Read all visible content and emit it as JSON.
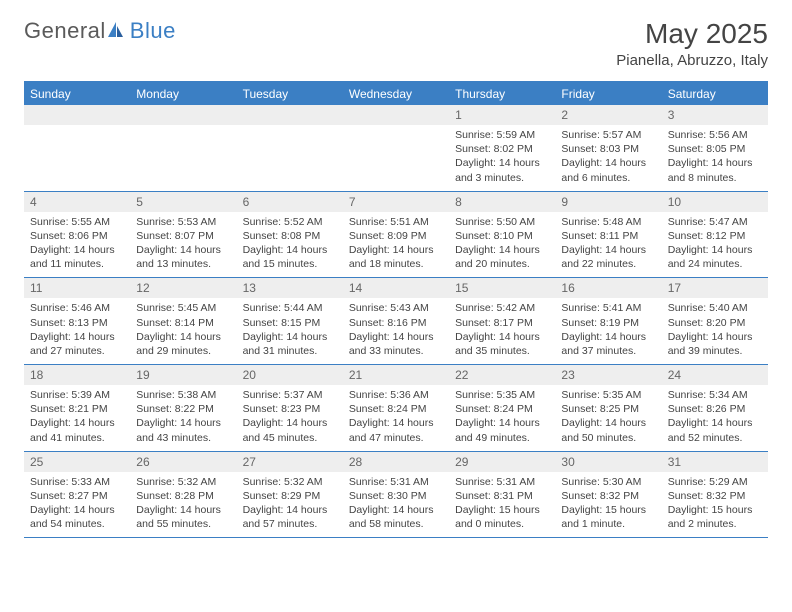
{
  "logo": {
    "general": "General",
    "blue": "Blue"
  },
  "title": "May 2025",
  "location": "Pianella, Abruzzo, Italy",
  "colors": {
    "primary": "#3b7fc4",
    "header_bg": "#3b7fc4",
    "header_text": "#ffffff",
    "daynum_bg": "#eeeeee",
    "body_text": "#444444",
    "logo_gray": "#5a5a5a"
  },
  "day_names": [
    "Sunday",
    "Monday",
    "Tuesday",
    "Wednesday",
    "Thursday",
    "Friday",
    "Saturday"
  ],
  "weeks": [
    [
      {
        "n": "",
        "lines": []
      },
      {
        "n": "",
        "lines": []
      },
      {
        "n": "",
        "lines": []
      },
      {
        "n": "",
        "lines": []
      },
      {
        "n": "1",
        "lines": [
          "Sunrise: 5:59 AM",
          "Sunset: 8:02 PM",
          "Daylight: 14 hours and 3 minutes."
        ]
      },
      {
        "n": "2",
        "lines": [
          "Sunrise: 5:57 AM",
          "Sunset: 8:03 PM",
          "Daylight: 14 hours and 6 minutes."
        ]
      },
      {
        "n": "3",
        "lines": [
          "Sunrise: 5:56 AM",
          "Sunset: 8:05 PM",
          "Daylight: 14 hours and 8 minutes."
        ]
      }
    ],
    [
      {
        "n": "4",
        "lines": [
          "Sunrise: 5:55 AM",
          "Sunset: 8:06 PM",
          "Daylight: 14 hours and 11 minutes."
        ]
      },
      {
        "n": "5",
        "lines": [
          "Sunrise: 5:53 AM",
          "Sunset: 8:07 PM",
          "Daylight: 14 hours and 13 minutes."
        ]
      },
      {
        "n": "6",
        "lines": [
          "Sunrise: 5:52 AM",
          "Sunset: 8:08 PM",
          "Daylight: 14 hours and 15 minutes."
        ]
      },
      {
        "n": "7",
        "lines": [
          "Sunrise: 5:51 AM",
          "Sunset: 8:09 PM",
          "Daylight: 14 hours and 18 minutes."
        ]
      },
      {
        "n": "8",
        "lines": [
          "Sunrise: 5:50 AM",
          "Sunset: 8:10 PM",
          "Daylight: 14 hours and 20 minutes."
        ]
      },
      {
        "n": "9",
        "lines": [
          "Sunrise: 5:48 AM",
          "Sunset: 8:11 PM",
          "Daylight: 14 hours and 22 minutes."
        ]
      },
      {
        "n": "10",
        "lines": [
          "Sunrise: 5:47 AM",
          "Sunset: 8:12 PM",
          "Daylight: 14 hours and 24 minutes."
        ]
      }
    ],
    [
      {
        "n": "11",
        "lines": [
          "Sunrise: 5:46 AM",
          "Sunset: 8:13 PM",
          "Daylight: 14 hours and 27 minutes."
        ]
      },
      {
        "n": "12",
        "lines": [
          "Sunrise: 5:45 AM",
          "Sunset: 8:14 PM",
          "Daylight: 14 hours and 29 minutes."
        ]
      },
      {
        "n": "13",
        "lines": [
          "Sunrise: 5:44 AM",
          "Sunset: 8:15 PM",
          "Daylight: 14 hours and 31 minutes."
        ]
      },
      {
        "n": "14",
        "lines": [
          "Sunrise: 5:43 AM",
          "Sunset: 8:16 PM",
          "Daylight: 14 hours and 33 minutes."
        ]
      },
      {
        "n": "15",
        "lines": [
          "Sunrise: 5:42 AM",
          "Sunset: 8:17 PM",
          "Daylight: 14 hours and 35 minutes."
        ]
      },
      {
        "n": "16",
        "lines": [
          "Sunrise: 5:41 AM",
          "Sunset: 8:19 PM",
          "Daylight: 14 hours and 37 minutes."
        ]
      },
      {
        "n": "17",
        "lines": [
          "Sunrise: 5:40 AM",
          "Sunset: 8:20 PM",
          "Daylight: 14 hours and 39 minutes."
        ]
      }
    ],
    [
      {
        "n": "18",
        "lines": [
          "Sunrise: 5:39 AM",
          "Sunset: 8:21 PM",
          "Daylight: 14 hours and 41 minutes."
        ]
      },
      {
        "n": "19",
        "lines": [
          "Sunrise: 5:38 AM",
          "Sunset: 8:22 PM",
          "Daylight: 14 hours and 43 minutes."
        ]
      },
      {
        "n": "20",
        "lines": [
          "Sunrise: 5:37 AM",
          "Sunset: 8:23 PM",
          "Daylight: 14 hours and 45 minutes."
        ]
      },
      {
        "n": "21",
        "lines": [
          "Sunrise: 5:36 AM",
          "Sunset: 8:24 PM",
          "Daylight: 14 hours and 47 minutes."
        ]
      },
      {
        "n": "22",
        "lines": [
          "Sunrise: 5:35 AM",
          "Sunset: 8:24 PM",
          "Daylight: 14 hours and 49 minutes."
        ]
      },
      {
        "n": "23",
        "lines": [
          "Sunrise: 5:35 AM",
          "Sunset: 8:25 PM",
          "Daylight: 14 hours and 50 minutes."
        ]
      },
      {
        "n": "24",
        "lines": [
          "Sunrise: 5:34 AM",
          "Sunset: 8:26 PM",
          "Daylight: 14 hours and 52 minutes."
        ]
      }
    ],
    [
      {
        "n": "25",
        "lines": [
          "Sunrise: 5:33 AM",
          "Sunset: 8:27 PM",
          "Daylight: 14 hours and 54 minutes."
        ]
      },
      {
        "n": "26",
        "lines": [
          "Sunrise: 5:32 AM",
          "Sunset: 8:28 PM",
          "Daylight: 14 hours and 55 minutes."
        ]
      },
      {
        "n": "27",
        "lines": [
          "Sunrise: 5:32 AM",
          "Sunset: 8:29 PM",
          "Daylight: 14 hours and 57 minutes."
        ]
      },
      {
        "n": "28",
        "lines": [
          "Sunrise: 5:31 AM",
          "Sunset: 8:30 PM",
          "Daylight: 14 hours and 58 minutes."
        ]
      },
      {
        "n": "29",
        "lines": [
          "Sunrise: 5:31 AM",
          "Sunset: 8:31 PM",
          "Daylight: 15 hours and 0 minutes."
        ]
      },
      {
        "n": "30",
        "lines": [
          "Sunrise: 5:30 AM",
          "Sunset: 8:32 PM",
          "Daylight: 15 hours and 1 minute."
        ]
      },
      {
        "n": "31",
        "lines": [
          "Sunrise: 5:29 AM",
          "Sunset: 8:32 PM",
          "Daylight: 15 hours and 2 minutes."
        ]
      }
    ]
  ]
}
